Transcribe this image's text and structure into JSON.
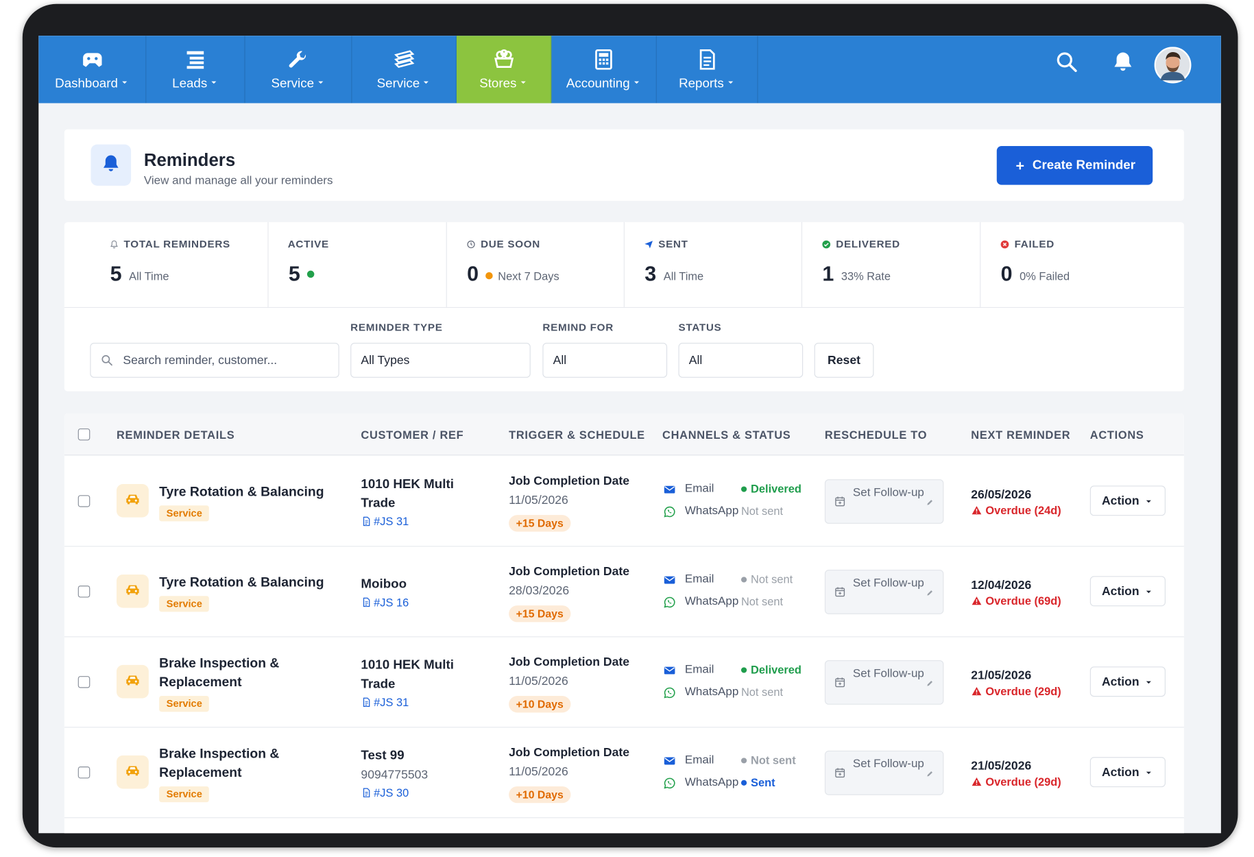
{
  "nav": {
    "items": [
      {
        "label": "Dashboard"
      },
      {
        "label": "Leads"
      },
      {
        "label": "Service"
      },
      {
        "label": "Service"
      },
      {
        "label": "Stores"
      },
      {
        "label": "Accounting"
      },
      {
        "label": "Reports"
      }
    ]
  },
  "header": {
    "title": "Reminders",
    "subtitle": "View and manage all your reminders",
    "button": "Create Reminder"
  },
  "stats": [
    {
      "label": "TOTAL REMINDERS",
      "value": 5,
      "note": "All Time"
    },
    {
      "label": "ACTIVE",
      "value": 5
    },
    {
      "label": "DUE SOON",
      "value": 0,
      "note": "Next 7 Days"
    },
    {
      "label": "SENT",
      "value": 3,
      "note": "All Time"
    },
    {
      "label": "DELIVERED",
      "value": 1,
      "note": "33% Rate"
    },
    {
      "label": "FAILED",
      "value": 0,
      "note": "0% Failed"
    }
  ],
  "filters": {
    "search_placeholder": "Search reminder, customer...",
    "fields": [
      {
        "label": "REMINDER TYPE",
        "value": "All Types"
      },
      {
        "label": "REMIND FOR",
        "value": "All"
      },
      {
        "label": "STATUS",
        "value": "All"
      }
    ],
    "reset": "Reset"
  },
  "table": {
    "columns": [
      "REMINDER DETAILS",
      "CUSTOMER / REF",
      "TRIGGER & SCHEDULE",
      "CHANNELS & STATUS",
      "RESCHEDULE TO",
      "NEXT REMINDER",
      "ACTIONS"
    ],
    "rows": [
      {
        "title": "Tyre Rotation & Balancing",
        "tag": "Service",
        "customer": "1010 HEK Multi Trade",
        "ref": "#JS 31",
        "trigger": "Job Completion Date",
        "date": "11/05/2026",
        "offset": "+15 Days",
        "channels": [
          {
            "name": "Email",
            "status": "Delivered",
            "color": "#1f9d4c",
            "dot": true
          },
          {
            "name": "WhatsApp",
            "status": "Not sent",
            "color": "#9aa0a8",
            "dot": false
          }
        ],
        "reschedule": "Set Follow-up",
        "next_date": "26/05/2026",
        "overdue": "Overdue (24d)",
        "action": "Action"
      },
      {
        "title": "Tyre Rotation & Balancing",
        "tag": "Service",
        "customer": "Moiboo",
        "ref": "#JS 16",
        "trigger": "Job Completion Date",
        "date": "28/03/2026",
        "offset": "+15 Days",
        "channels": [
          {
            "name": "Email",
            "status": "Not sent",
            "color": "#9aa0a8",
            "dot": true
          },
          {
            "name": "WhatsApp",
            "status": "Not sent",
            "color": "#9aa0a8",
            "dot": false
          }
        ],
        "reschedule": "Set Follow-up",
        "next_date": "12/04/2026",
        "overdue": "Overdue (69d)",
        "action": "Action"
      },
      {
        "title": "Brake Inspection & Replacement",
        "tag": "Service",
        "customer": "1010 HEK Multi Trade",
        "ref": "#JS 31",
        "trigger": "Job Completion Date",
        "date": "11/05/2026",
        "offset": "+10 Days",
        "channels": [
          {
            "name": "Email",
            "status": "Delivered",
            "color": "#1f9d4c",
            "dot": true
          },
          {
            "name": "WhatsApp",
            "status": "Not sent",
            "color": "#9aa0a8",
            "dot": false
          }
        ],
        "reschedule": "Set Follow-up",
        "next_date": "21/05/2026",
        "overdue": "Overdue (29d)",
        "action": "Action"
      },
      {
        "title": "Brake Inspection & Replacement",
        "tag": "Service",
        "customer": "Test 99",
        "phone": "9094775503",
        "ref": "#JS 30",
        "trigger": "Job Completion Date",
        "date": "11/05/2026",
        "offset": "+10 Days",
        "channels": [
          {
            "name": "Email",
            "status": "Not sent",
            "color": "#9aa0a8",
            "dot": true
          },
          {
            "name": "WhatsApp",
            "status": "Sent",
            "color": "#1a5fd8",
            "dot": true
          }
        ],
        "reschedule": "Set Follow-up",
        "next_date": "21/05/2026",
        "overdue": "Overdue (29d)",
        "action": "Action"
      }
    ]
  }
}
